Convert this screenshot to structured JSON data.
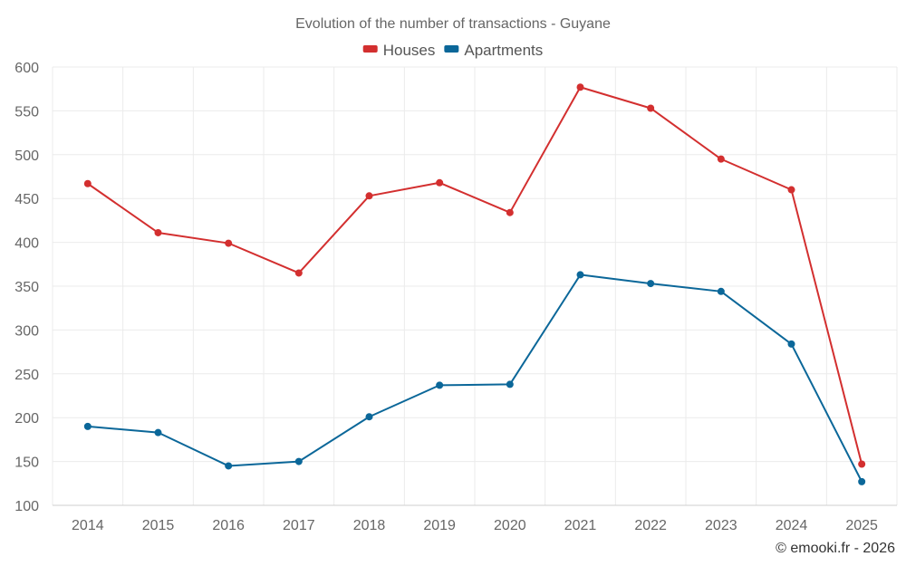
{
  "chart_data": {
    "type": "line",
    "title": "Evolution of the number of transactions - Guyane",
    "categories": [
      "2014",
      "2015",
      "2016",
      "2017",
      "2018",
      "2019",
      "2020",
      "2021",
      "2022",
      "2023",
      "2024",
      "2025"
    ],
    "series": [
      {
        "name": "Houses",
        "color": "#d32f2f",
        "values": [
          467,
          411,
          399,
          365,
          453,
          468,
          434,
          577,
          553,
          495,
          460,
          147
        ]
      },
      {
        "name": "Apartments",
        "color": "#0b6799",
        "values": [
          190,
          183,
          145,
          150,
          201,
          237,
          238,
          363,
          353,
          344,
          284,
          127
        ]
      }
    ],
    "ylim": [
      100,
      600
    ],
    "yticks": [
      100,
      150,
      200,
      250,
      300,
      350,
      400,
      450,
      500,
      550,
      600
    ],
    "grid": true,
    "legend_position": "top-center",
    "xlabel": "",
    "ylabel": ""
  },
  "credit": "© emooki.fr - 2026"
}
